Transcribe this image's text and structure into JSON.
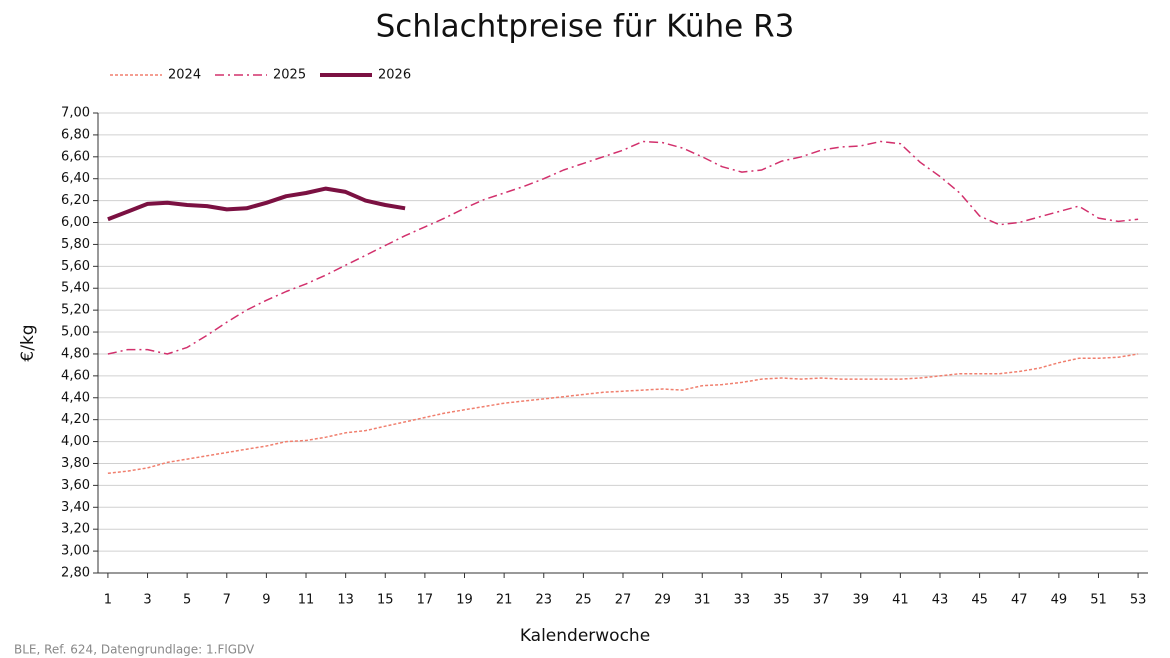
{
  "chart_data": {
    "type": "line",
    "title": "Schlachtpreise für Kühe R3",
    "x_label": "Kalenderwoche",
    "y_label": "€/kg",
    "source": "BLE, Ref. 624, Datengrundlage: 1.FlGDV",
    "x": [
      1,
      2,
      3,
      4,
      5,
      6,
      7,
      8,
      9,
      10,
      11,
      12,
      13,
      14,
      15,
      16,
      17,
      18,
      19,
      20,
      21,
      22,
      23,
      24,
      25,
      26,
      27,
      28,
      29,
      30,
      31,
      32,
      33,
      34,
      35,
      36,
      37,
      38,
      39,
      40,
      41,
      42,
      43,
      44,
      45,
      46,
      47,
      48,
      49,
      50,
      51,
      52,
      53
    ],
    "xlim": [
      0.5,
      53.5
    ],
    "xticks": [
      1,
      3,
      5,
      7,
      9,
      11,
      13,
      15,
      17,
      19,
      21,
      23,
      25,
      27,
      29,
      31,
      33,
      35,
      37,
      39,
      41,
      43,
      45,
      47,
      49,
      51,
      53
    ],
    "ylim": [
      2.8,
      7.0
    ],
    "yticks": [
      {
        "value": 2.8,
        "label": "2,80"
      },
      {
        "value": 3.0,
        "label": "3,00"
      },
      {
        "value": 3.2,
        "label": "3,20"
      },
      {
        "value": 3.4,
        "label": "3,40"
      },
      {
        "value": 3.6,
        "label": "3,60"
      },
      {
        "value": 3.8,
        "label": "3,80"
      },
      {
        "value": 4.0,
        "label": "4,00"
      },
      {
        "value": 4.2,
        "label": "4,20"
      },
      {
        "value": 4.4,
        "label": "4,40"
      },
      {
        "value": 4.6,
        "label": "4,60"
      },
      {
        "value": 4.8,
        "label": "4,80"
      },
      {
        "value": 5.0,
        "label": "5,00"
      },
      {
        "value": 5.2,
        "label": "5,20"
      },
      {
        "value": 5.4,
        "label": "5,40"
      },
      {
        "value": 5.6,
        "label": "5,60"
      },
      {
        "value": 5.8,
        "label": "5,80"
      },
      {
        "value": 6.0,
        "label": "6,00"
      },
      {
        "value": 6.2,
        "label": "6,20"
      },
      {
        "value": 6.4,
        "label": "6,40"
      },
      {
        "value": 6.6,
        "label": "6,60"
      },
      {
        "value": 6.8,
        "label": "6,80"
      },
      {
        "value": 7.0,
        "label": "7,00"
      }
    ],
    "grid": true,
    "legend": "top-left",
    "series": [
      {
        "name": "2024",
        "color": "#f07f6e",
        "dash": "dotted",
        "width": 1.5,
        "values": [
          3.71,
          3.73,
          3.76,
          3.81,
          3.84,
          3.87,
          3.9,
          3.93,
          3.96,
          4.0,
          4.01,
          4.04,
          4.08,
          4.1,
          4.14,
          4.18,
          4.22,
          4.26,
          4.29,
          4.32,
          4.35,
          4.37,
          4.39,
          4.41,
          4.43,
          4.45,
          4.46,
          4.47,
          4.48,
          4.47,
          4.51,
          4.52,
          4.54,
          4.57,
          4.58,
          4.57,
          4.58,
          4.57,
          4.57,
          4.57,
          4.57,
          4.58,
          4.6,
          4.62,
          4.62,
          4.62,
          4.64,
          4.67,
          4.72,
          4.76,
          4.76,
          4.77,
          4.8
        ]
      },
      {
        "name": "2025",
        "color": "#d2306c",
        "dash": "dashdot",
        "width": 1.5,
        "values": [
          4.8,
          4.84,
          4.84,
          4.8,
          4.86,
          4.97,
          5.09,
          5.2,
          5.29,
          5.37,
          5.44,
          5.52,
          5.61,
          5.7,
          5.79,
          5.88,
          5.96,
          6.04,
          6.13,
          6.21,
          6.27,
          6.33,
          6.4,
          6.48,
          6.54,
          6.6,
          6.66,
          6.74,
          6.73,
          6.68,
          6.6,
          6.51,
          6.46,
          6.48,
          6.56,
          6.6,
          6.66,
          6.69,
          6.7,
          6.74,
          6.72,
          6.55,
          6.42,
          6.27,
          6.06,
          5.98,
          6.0,
          6.05,
          6.1,
          6.15,
          6.04,
          6.01,
          6.03
        ]
      },
      {
        "name": "2026",
        "color": "#7b1142",
        "dash": "solid",
        "width": 4,
        "values": [
          6.03,
          6.1,
          6.17,
          6.18,
          6.16,
          6.15,
          6.12,
          6.13,
          6.18,
          6.24,
          6.27,
          6.31,
          6.28,
          6.2,
          6.16,
          6.13,
          null,
          null,
          null,
          null,
          null,
          null,
          null,
          null,
          null,
          null,
          null,
          null,
          null,
          null,
          null,
          null,
          null,
          null,
          null,
          null,
          null,
          null,
          null,
          null,
          null,
          null,
          null,
          null,
          null,
          null,
          null,
          null,
          null,
          null,
          null,
          null,
          null
        ]
      }
    ]
  }
}
